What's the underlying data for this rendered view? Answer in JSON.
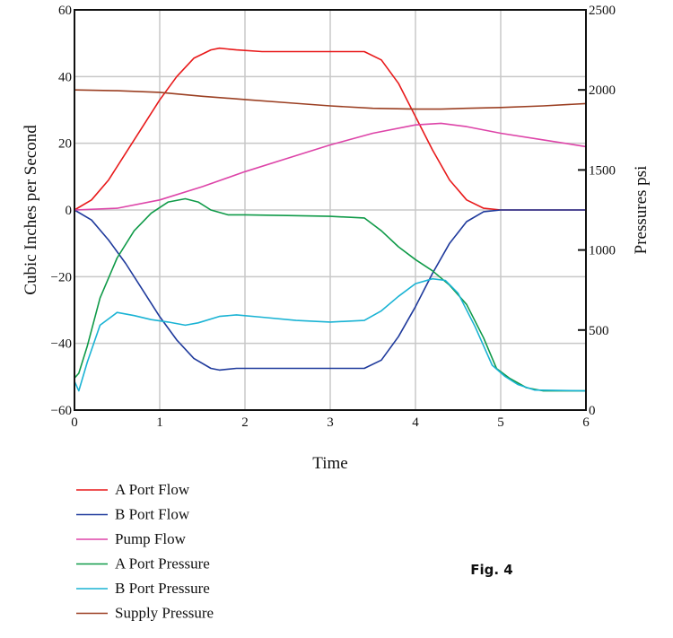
{
  "chart_data": {
    "type": "line",
    "title": "",
    "xlabel": "Time",
    "ylabel": "Cubic Inches per Second",
    "ylabel_right": "Pressures psi",
    "xlim": [
      0,
      6
    ],
    "ylim": [
      -60,
      60
    ],
    "ylim_right": [
      0,
      2500
    ],
    "x_ticks": [
      "0",
      "1",
      "2",
      "3",
      "4",
      "5",
      "6"
    ],
    "y_ticks": [
      "60",
      "40",
      "20",
      "0",
      "-20",
      "-40",
      "-60"
    ],
    "y_ticks_right": [
      "2500",
      "2000",
      "1500",
      "1000",
      "500",
      "0"
    ],
    "grid": true,
    "legend_position": "bottom-left",
    "series": [
      {
        "name": "A Port Flow",
        "axis": "left",
        "color": "#e8191a",
        "x": [
          0,
          0.2,
          0.4,
          0.6,
          0.8,
          1.0,
          1.2,
          1.4,
          1.6,
          1.7,
          1.9,
          2.2,
          2.6,
          3.0,
          3.4,
          3.6,
          3.8,
          4.0,
          4.2,
          4.4,
          4.6,
          4.8,
          5.0,
          5.5,
          6.0
        ],
        "y": [
          0,
          3,
          9,
          17,
          25,
          33,
          40,
          45.5,
          48,
          48.5,
          48,
          47.5,
          47.5,
          47.5,
          47.5,
          45,
          38,
          28,
          18,
          9,
          3,
          0.5,
          0,
          0,
          0
        ]
      },
      {
        "name": "B Port Flow",
        "axis": "left",
        "color": "#1f3a9c",
        "x": [
          0,
          0.2,
          0.4,
          0.6,
          0.8,
          1.0,
          1.2,
          1.4,
          1.6,
          1.7,
          1.9,
          2.2,
          2.6,
          3.0,
          3.4,
          3.6,
          3.8,
          4.0,
          4.2,
          4.4,
          4.6,
          4.8,
          5.0,
          5.5,
          6.0
        ],
        "y": [
          0,
          -3,
          -9,
          -16,
          -24,
          -32,
          -39,
          -44.5,
          -47.5,
          -48,
          -47.5,
          -47.5,
          -47.5,
          -47.5,
          -47.5,
          -45,
          -38,
          -29,
          -19,
          -10,
          -3.5,
          -0.5,
          0,
          0,
          0
        ]
      },
      {
        "name": "Pump Flow",
        "axis": "left",
        "color": "#dd44a8",
        "x": [
          0,
          0.5,
          1.0,
          1.5,
          2.0,
          2.5,
          3.0,
          3.5,
          4.0,
          4.3,
          4.6,
          5.0,
          5.5,
          6.0
        ],
        "y": [
          0,
          0.5,
          3,
          7,
          11.5,
          15.5,
          19.5,
          23,
          25.5,
          26,
          25,
          23,
          21,
          19
        ]
      },
      {
        "name": "A Port Pressure",
        "axis": "right",
        "color": "#0f9a48",
        "x": [
          0,
          0.05,
          0.15,
          0.3,
          0.5,
          0.7,
          0.9,
          1.1,
          1.3,
          1.45,
          1.6,
          1.8,
          2.0,
          2.5,
          3.0,
          3.4,
          3.6,
          3.8,
          4.0,
          4.2,
          4.4,
          4.6,
          4.8,
          4.95,
          5.1,
          5.3,
          5.5,
          6.0
        ],
        "y": [
          200,
          230,
          400,
          700,
          950,
          1120,
          1230,
          1300,
          1320,
          1300,
          1250,
          1220,
          1220,
          1215,
          1210,
          1200,
          1120,
          1020,
          940,
          870,
          780,
          660,
          450,
          260,
          200,
          140,
          120,
          120
        ]
      },
      {
        "name": "B Port Pressure",
        "axis": "right",
        "color": "#1ab3d4",
        "x": [
          0,
          0.05,
          0.15,
          0.3,
          0.5,
          0.7,
          0.9,
          1.1,
          1.3,
          1.45,
          1.7,
          1.9,
          2.2,
          2.6,
          3.0,
          3.4,
          3.6,
          3.8,
          4.0,
          4.2,
          4.35,
          4.5,
          4.7,
          4.9,
          5.05,
          5.2,
          5.4,
          6.0
        ],
        "y": [
          180,
          120,
          300,
          530,
          610,
          590,
          565,
          550,
          530,
          545,
          585,
          595,
          580,
          560,
          550,
          560,
          620,
          710,
          790,
          820,
          810,
          730,
          520,
          280,
          210,
          160,
          125,
          120
        ]
      },
      {
        "name": "Supply Pressure",
        "axis": "right",
        "color": "#9b3f22",
        "x": [
          0,
          0.5,
          1.0,
          1.5,
          2.0,
          2.5,
          3.0,
          3.5,
          4.0,
          4.3,
          4.6,
          5.0,
          5.5,
          6.0
        ],
        "y": [
          2000,
          1995,
          1985,
          1960,
          1940,
          1920,
          1900,
          1885,
          1880,
          1880,
          1885,
          1890,
          1900,
          1915
        ]
      }
    ],
    "annotation": "Fig. 4"
  }
}
